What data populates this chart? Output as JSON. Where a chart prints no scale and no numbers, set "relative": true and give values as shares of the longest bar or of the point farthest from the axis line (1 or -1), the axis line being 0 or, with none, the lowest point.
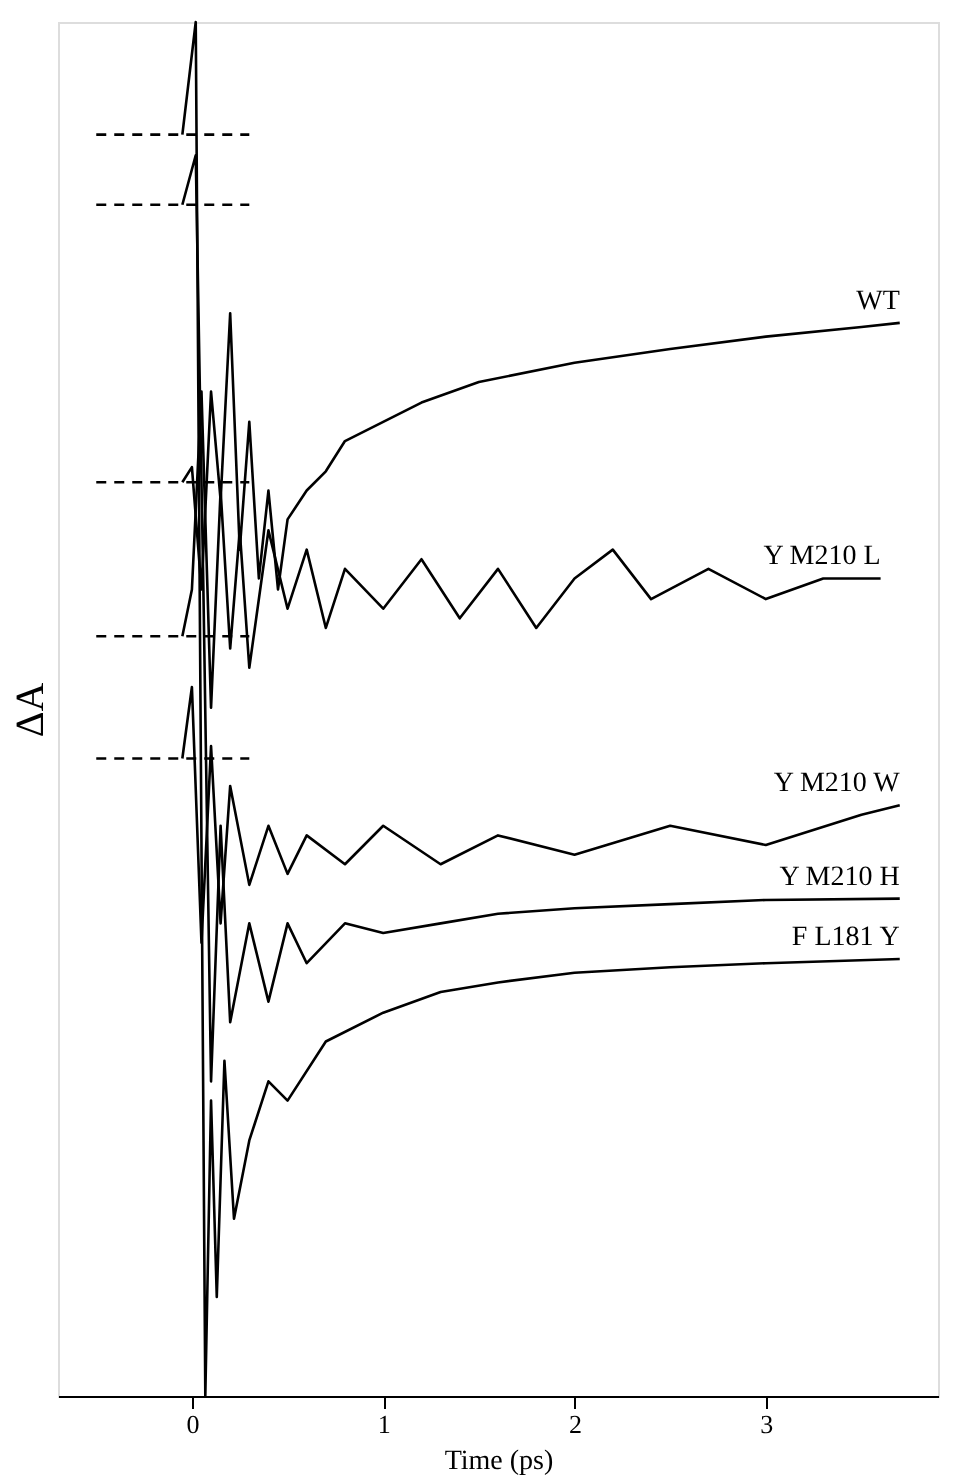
{
  "chart_data": {
    "type": "line",
    "relative": true,
    "xlabel": "Time (ps)",
    "ylabel": "ΔA",
    "xlim": [
      -0.7,
      3.9
    ],
    "xticks": [
      0,
      1,
      2,
      3
    ],
    "grid": false,
    "marker": "none",
    "series": [
      {
        "name": "WT",
        "color": "#000000",
        "x": [
          -0.05,
          0,
          0.05,
          0.1,
          0.15,
          0.2,
          0.25,
          0.3,
          0.35,
          0.4,
          0.45,
          0.5,
          0.6,
          0.7,
          0.8,
          1.0,
          1.2,
          1.5,
          2.0,
          2.5,
          3.0,
          3.5,
          3.7
        ],
        "values": [
          0.665,
          0.676,
          0.587,
          0.731,
          0.652,
          0.788,
          0.616,
          0.709,
          0.595,
          0.659,
          0.587,
          0.638,
          0.659,
          0.673,
          0.695,
          0.709,
          0.723,
          0.738,
          0.752,
          0.762,
          0.771,
          0.778,
          0.781
        ]
      },
      {
        "name": "Y M210 L",
        "color": "#000000",
        "x": [
          -0.05,
          0,
          0.05,
          0.1,
          0.15,
          0.2,
          0.25,
          0.3,
          0.4,
          0.5,
          0.6,
          0.7,
          0.8,
          1.0,
          1.2,
          1.4,
          1.6,
          1.8,
          2.0,
          2.2,
          2.4,
          2.7,
          3.0,
          3.3,
          3.6
        ],
        "values": [
          0.553,
          0.587,
          0.731,
          0.501,
          0.659,
          0.544,
          0.63,
          0.53,
          0.63,
          0.573,
          0.616,
          0.559,
          0.602,
          0.573,
          0.609,
          0.566,
          0.602,
          0.559,
          0.595,
          0.616,
          0.58,
          0.602,
          0.58,
          0.595,
          0.595
        ]
      },
      {
        "name": "Y M210 W",
        "color": "#000000",
        "x": [
          -0.05,
          0,
          0.05,
          0.1,
          0.15,
          0.2,
          0.3,
          0.4,
          0.5,
          0.6,
          0.8,
          1.0,
          1.3,
          1.6,
          2.0,
          2.5,
          3.0,
          3.5,
          3.7
        ],
        "values": [
          0.464,
          0.516,
          0.33,
          0.473,
          0.344,
          0.444,
          0.372,
          0.415,
          0.38,
          0.408,
          0.387,
          0.415,
          0.387,
          0.408,
          0.394,
          0.415,
          0.401,
          0.423,
          0.43
        ]
      },
      {
        "name": "Y M210 H",
        "color": "#000000",
        "x": [
          -0.05,
          0.02,
          0.06,
          0.1,
          0.15,
          0.2,
          0.3,
          0.4,
          0.5,
          0.6,
          0.8,
          1.0,
          1.3,
          1.6,
          2.0,
          2.5,
          3.0,
          3.7
        ],
        "values": [
          0.867,
          0.903,
          0.587,
          0.229,
          0.415,
          0.272,
          0.344,
          0.287,
          0.344,
          0.315,
          0.344,
          0.337,
          0.344,
          0.351,
          0.355,
          0.358,
          0.361,
          0.362
        ]
      },
      {
        "name": "F L181 Y",
        "color": "#000000",
        "x": [
          -0.05,
          0.02,
          0.07,
          0.1,
          0.13,
          0.17,
          0.22,
          0.3,
          0.4,
          0.5,
          0.7,
          1.0,
          1.3,
          1.6,
          2.0,
          2.5,
          3.0,
          3.7
        ],
        "values": [
          0.918,
          1.0,
          0,
          0.215,
          0.072,
          0.244,
          0.129,
          0.186,
          0.229,
          0.215,
          0.258,
          0.279,
          0.294,
          0.301,
          0.308,
          0.312,
          0.315,
          0.318
        ]
      },
      {
        "color": "#000000",
        "line_style": "dashed",
        "x": [
          -0.5,
          0.3
        ],
        "values": [
          0.918,
          0.918
        ]
      },
      {
        "color": "#000000",
        "line_style": "dashed",
        "x": [
          -0.5,
          0.3
        ],
        "values": [
          0.867,
          0.867
        ]
      },
      {
        "color": "#000000",
        "line_style": "dashed",
        "x": [
          -0.5,
          0.3
        ],
        "values": [
          0.665,
          0.665
        ]
      },
      {
        "color": "#000000",
        "line_style": "dashed",
        "x": [
          -0.5,
          0.3
        ],
        "values": [
          0.553,
          0.553
        ]
      },
      {
        "color": "#000000",
        "line_style": "dashed",
        "x": [
          -0.5,
          0.3
        ],
        "values": [
          0.464,
          0.464
        ]
      }
    ]
  }
}
